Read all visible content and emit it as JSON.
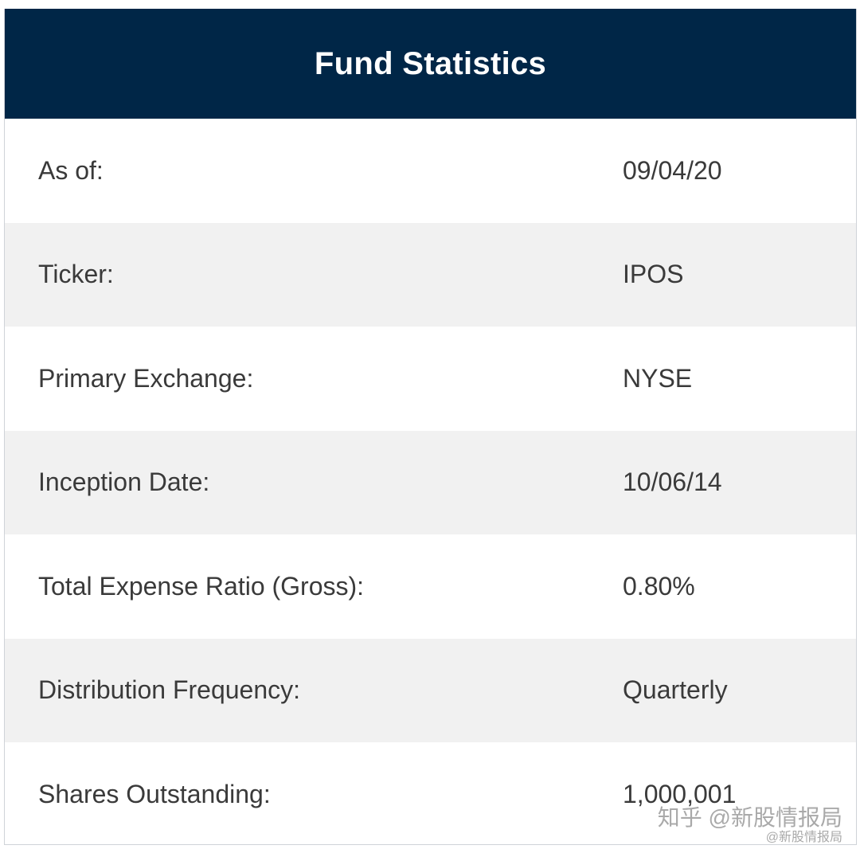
{
  "header": {
    "title": "Fund Statistics",
    "background_color": "#002647"
  },
  "rows": [
    {
      "label": "As of:",
      "value": "09/04/20"
    },
    {
      "label": "Ticker:",
      "value": "IPOS"
    },
    {
      "label": "Primary Exchange:",
      "value": "NYSE"
    },
    {
      "label": "Inception Date:",
      "value": "10/06/14"
    },
    {
      "label": "Total Expense Ratio (Gross):",
      "value": "0.80%"
    },
    {
      "label": "Distribution Frequency:",
      "value": "Quarterly"
    },
    {
      "label": "Shares Outstanding:",
      "value": "1,000,001"
    }
  ],
  "watermark": {
    "main": "知乎 @新股情报局",
    "sub": "@新股情报局"
  }
}
